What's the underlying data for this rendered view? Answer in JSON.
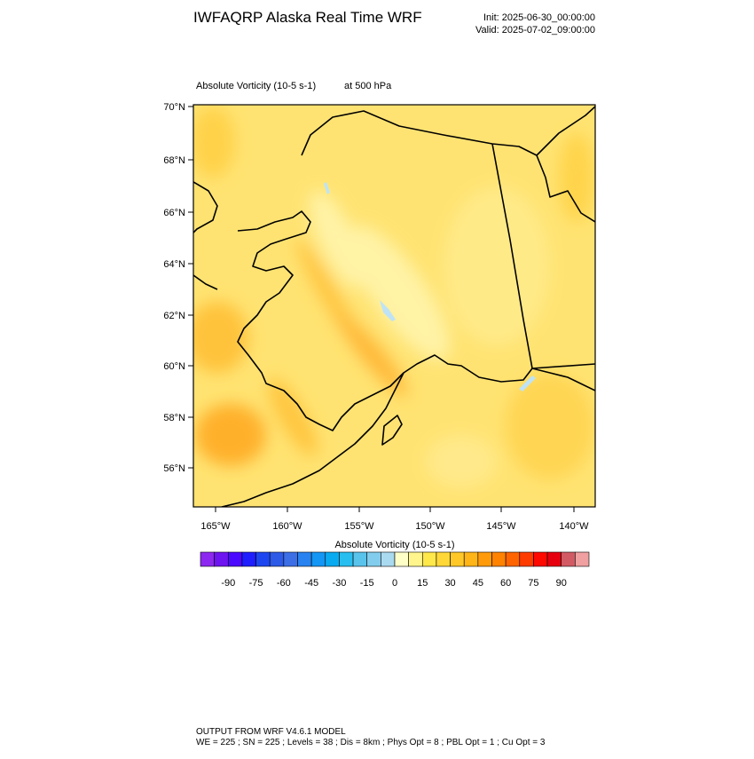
{
  "header": {
    "title": "IWFAQRP Alaska Real Time WRF",
    "init": "Init: 2025-06-30_00:00:00",
    "valid": "Valid: 2025-07-02_09:00:00"
  },
  "map": {
    "field_label": "Absolute Vorticity   (10-5 s-1)",
    "level_label": "at   500 hPa",
    "lat_labels": [
      "70°N",
      "68°N",
      "66°N",
      "64°N",
      "62°N",
      "60°N",
      "58°N",
      "56°N"
    ],
    "lon_labels": [
      "165°W",
      "160°W",
      "155°W",
      "150°W",
      "145°W",
      "140°W"
    ]
  },
  "colorbar": {
    "title": "Absolute Vorticity  (10-5 s-1)",
    "lim": [
      -105,
      105
    ],
    "ticks": [
      -90,
      -75,
      -60,
      -45,
      -30,
      -15,
      0,
      15,
      30,
      45,
      60,
      75,
      90
    ],
    "colors": [
      "#8c28f0",
      "#6e14f0",
      "#4b0aff",
      "#1e1eff",
      "#1e46f0",
      "#2d5ae6",
      "#3c6ee6",
      "#2882f0",
      "#1496f5",
      "#0aaaf0",
      "#28bef0",
      "#5ac3ec",
      "#82cdee",
      "#aadaf0",
      "#ffffc8",
      "#fff58c",
      "#ffe84a",
      "#ffd838",
      "#ffc828",
      "#ffb418",
      "#ff9b0a",
      "#ff8200",
      "#ff6400",
      "#ff3c00",
      "#ff0a00",
      "#e6000f",
      "#d25a64",
      "#f0a0a0"
    ]
  },
  "footer": {
    "line1": "OUTPUT FROM WRF V4.6.1 MODEL",
    "line2": "WE = 225 ; SN = 225 ; Levels = 38 ; Dis = 8km ; Phys Opt = 8 ; PBL Opt = 1 ; Cu Opt = 3"
  }
}
